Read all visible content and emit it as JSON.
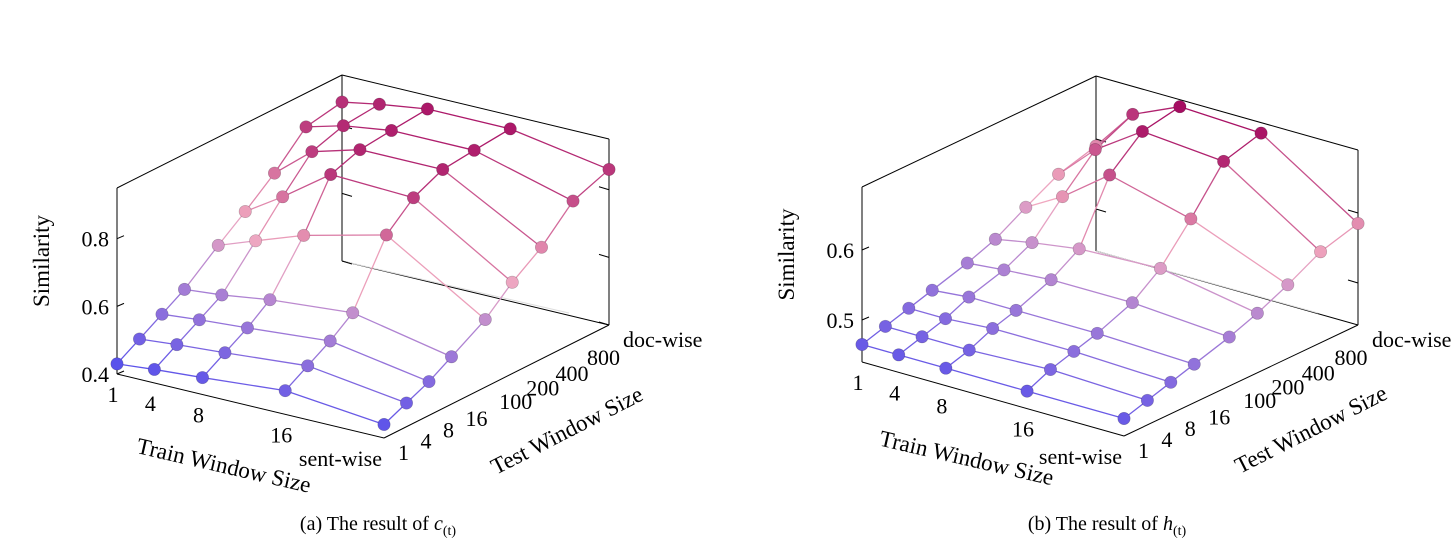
{
  "figure": {
    "panels": [
      {
        "caption_prefix": "(a) The result of ",
        "caption_var": "c",
        "caption_sub": "(t)"
      },
      {
        "caption_prefix": "(b) The result of ",
        "caption_var": "h",
        "caption_sub": "(t)"
      }
    ]
  },
  "chart_data": [
    {
      "type": "3d-line-mesh",
      "xlabel": "Train Window Size",
      "ylabel": "Test Window Size",
      "zlabel": "Similarity",
      "train_ticks": [
        "1",
        "4",
        "8",
        "16",
        "sent-wise"
      ],
      "test_ticks": [
        "1",
        "4",
        "8",
        "16",
        "100",
        "200",
        "400",
        "800",
        "doc-wise"
      ],
      "z_ticks": [
        "0.4",
        "0.6",
        "0.8"
      ],
      "zlim": [
        0.4,
        0.95
      ],
      "train_window": [
        "1",
        "4",
        "8",
        "16",
        "sent-wise"
      ],
      "test_window": [
        "1",
        "4",
        "8",
        "16",
        "100",
        "200",
        "400",
        "800",
        "doc-wise"
      ],
      "colormap": [
        "#4747f0",
        "#f0a8c0",
        "#a0005a"
      ],
      "similarity": [
        [
          0.43,
          0.47,
          0.51,
          0.55,
          0.63,
          0.69,
          0.76,
          0.85,
          0.87
        ],
        [
          0.44,
          0.48,
          0.52,
          0.56,
          0.67,
          0.76,
          0.85,
          0.88,
          0.89
        ],
        [
          0.45,
          0.49,
          0.53,
          0.58,
          0.72,
          0.86,
          0.89,
          0.9,
          0.91
        ],
        [
          0.47,
          0.51,
          0.55,
          0.6,
          0.78,
          0.85,
          0.89,
          0.9,
          0.91
        ],
        [
          0.44,
          0.47,
          0.5,
          0.54,
          0.6,
          0.67,
          0.73,
          0.82,
          0.86
        ]
      ]
    },
    {
      "type": "3d-line-mesh",
      "xlabel": "Train Window Size",
      "ylabel": "Test Window Size",
      "zlabel": "Similarity",
      "train_ticks": [
        "1",
        "4",
        "8",
        "16",
        "sent-wise"
      ],
      "test_ticks": [
        "1",
        "4",
        "8",
        "16",
        "100",
        "200",
        "400",
        "800",
        "doc-wise"
      ],
      "z_ticks": [
        "0.5",
        "0.6"
      ],
      "zlim": [
        0.44,
        0.69
      ],
      "train_window": [
        "1",
        "4",
        "8",
        "16",
        "sent-wise"
      ],
      "test_window": [
        "1",
        "4",
        "8",
        "16",
        "100",
        "200",
        "400",
        "800",
        "doc-wise"
      ],
      "colormap": [
        "#4747f0",
        "#f0a8c0",
        "#a0005a"
      ],
      "similarity": [
        [
          0.465,
          0.475,
          0.485,
          0.495,
          0.51,
          0.525,
          0.55,
          0.575,
          0.59
        ],
        [
          0.465,
          0.475,
          0.485,
          0.5,
          0.515,
          0.535,
          0.58,
          0.625,
          0.65
        ],
        [
          0.465,
          0.475,
          0.49,
          0.5,
          0.52,
          0.545,
          0.63,
          0.67,
          0.68
        ],
        [
          0.465,
          0.48,
          0.49,
          0.5,
          0.52,
          0.55,
          0.6,
          0.66,
          0.675
        ],
        [
          0.465,
          0.475,
          0.485,
          0.495,
          0.51,
          0.525,
          0.545,
          0.57,
          0.585
        ]
      ]
    }
  ]
}
